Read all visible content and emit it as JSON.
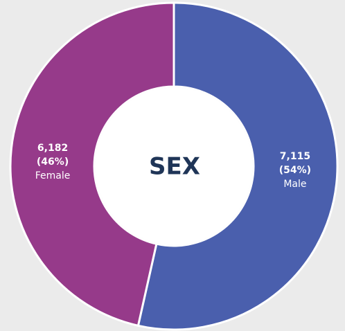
{
  "chart_data": {
    "type": "donut",
    "title": "SEX",
    "categories": [
      "Male",
      "Female"
    ],
    "values": [
      7115,
      6182
    ],
    "value_labels": [
      "7,115",
      "6,182"
    ],
    "percent_labels": [
      "(54%)",
      "(46%)"
    ],
    "colors": [
      "#4a5fad",
      "#963a8a"
    ]
  }
}
